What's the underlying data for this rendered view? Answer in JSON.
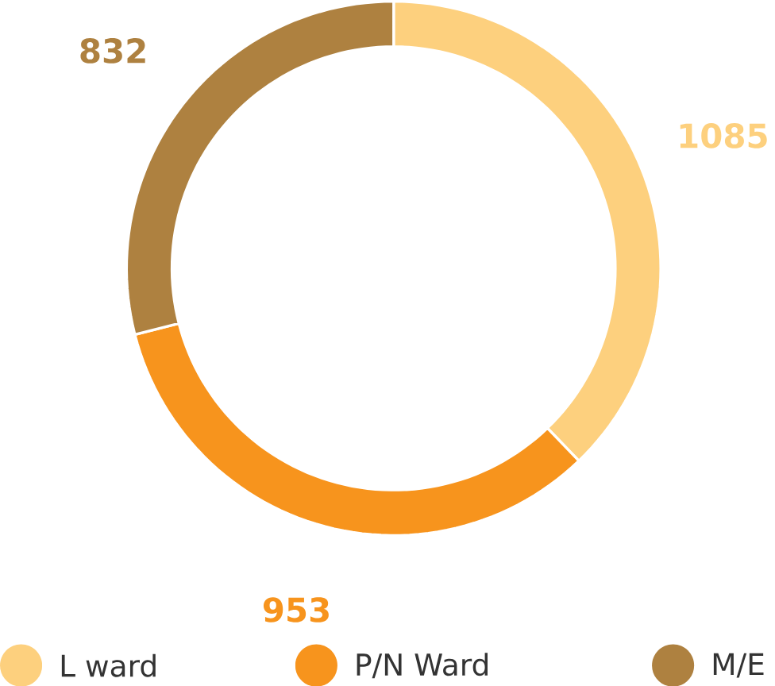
{
  "chart_data": {
    "type": "donut",
    "categories": [
      "L ward",
      "P/N Ward",
      "M/E"
    ],
    "values": [
      1085,
      953,
      832
    ],
    "colors": [
      "#fdd07e",
      "#f7941d",
      "#ae8140"
    ],
    "data_labels": true,
    "legend": "bottom"
  }
}
